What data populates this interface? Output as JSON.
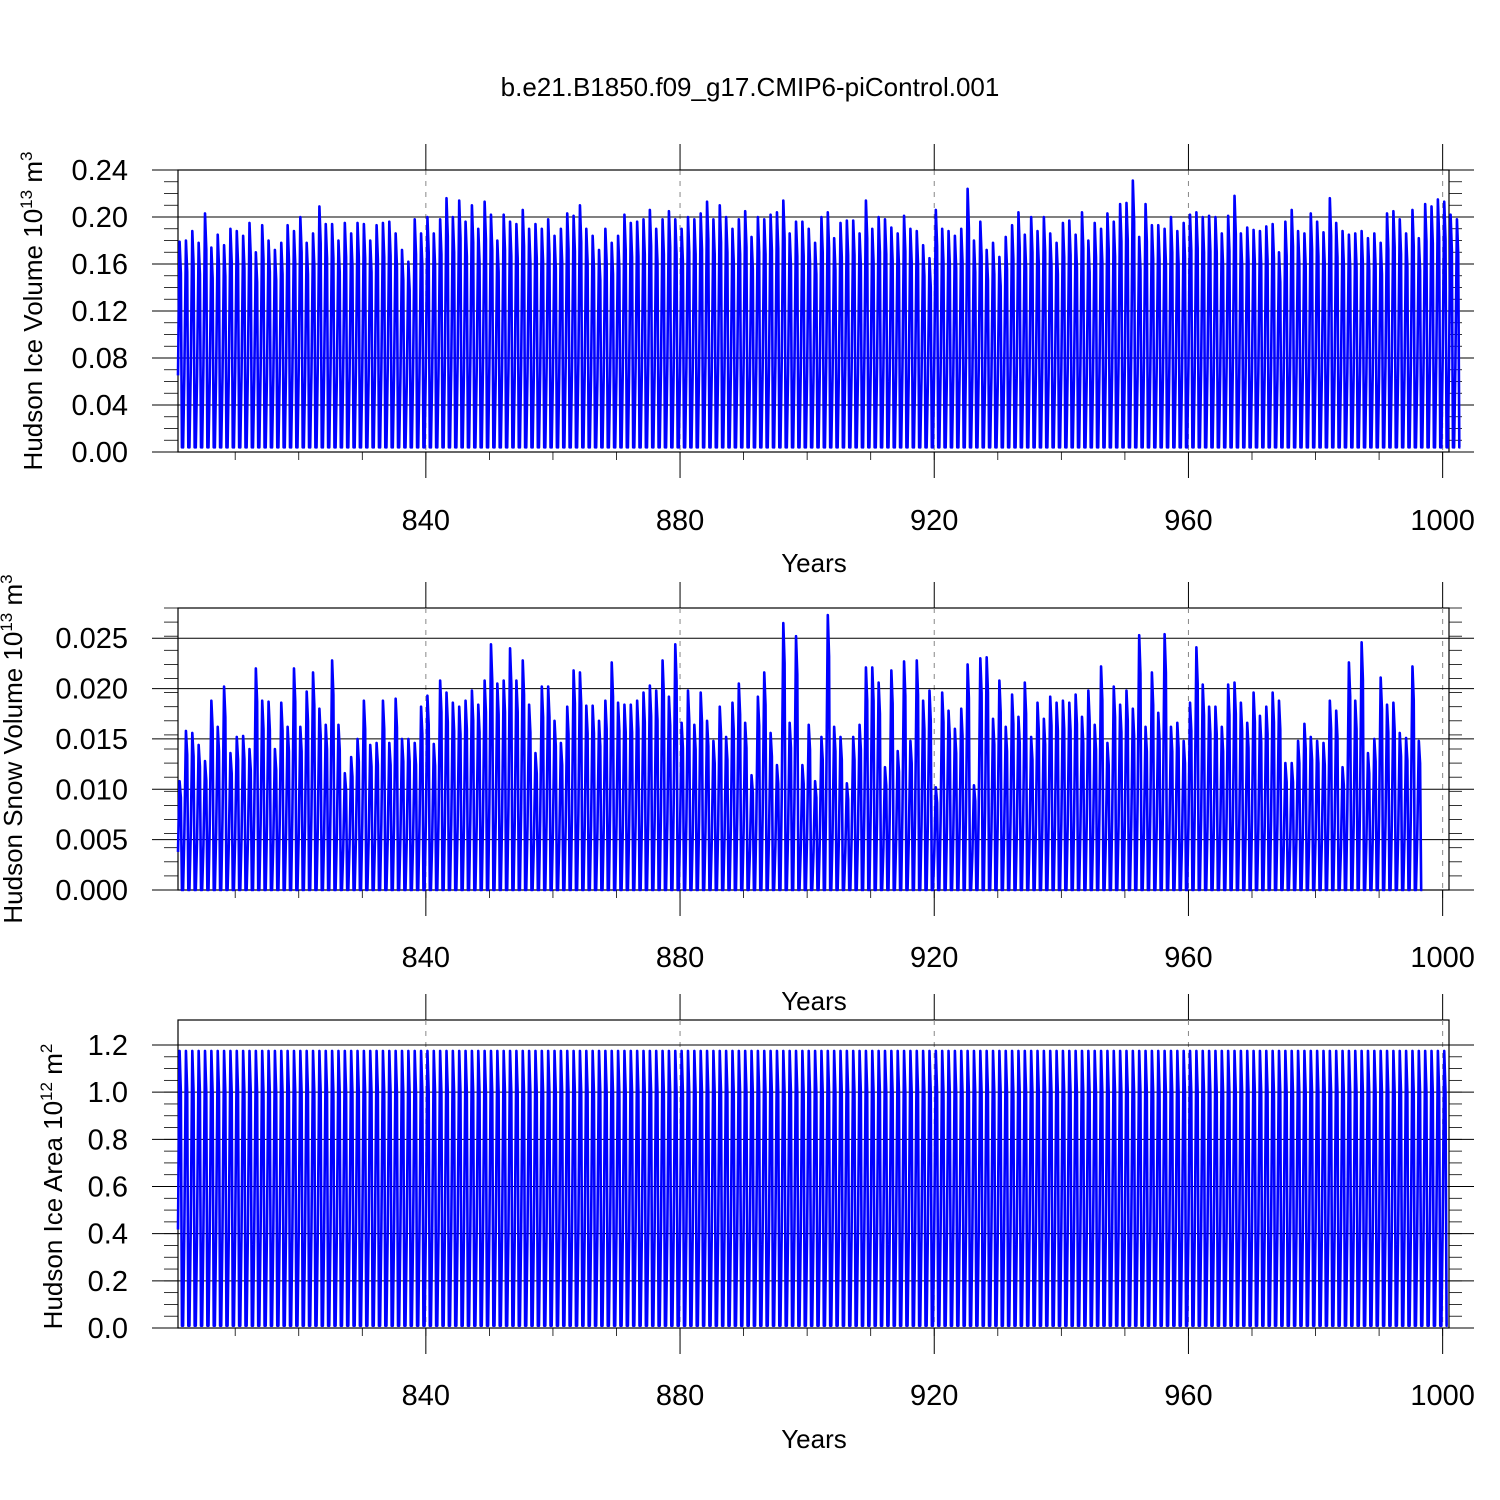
{
  "figure": {
    "title": "b.e21.B1850.f09_g17.CMIP6-piControl.001"
  },
  "chart_data": [
    {
      "type": "line",
      "title": "",
      "xlabel": "Years",
      "ylabel": "Hudson Ice Volume 10",
      "ylabel_exp1": "13",
      "ylabel_mid": " m",
      "ylabel_exp2": "3",
      "xlim": [
        801,
        1001
      ],
      "ylim": [
        0,
        0.24
      ],
      "x_ticks": [
        840,
        880,
        920,
        960,
        1000
      ],
      "y_ticks": [
        0.0,
        0.04,
        0.08,
        0.12,
        0.16,
        0.2,
        0.24
      ],
      "y_tick_labels": [
        "0.00",
        "0.04",
        "0.08",
        "0.12",
        "0.16",
        "0.20",
        "0.24"
      ],
      "grid": "dashed verticals at x ticks",
      "line_color": "#0000ff",
      "cycle": "annual",
      "series": [
        {
          "start_year": 801,
          "annual_min": 0.004,
          "annual_max": [
            0.179,
            0.18,
            0.188,
            0.178,
            0.203,
            0.174,
            0.185,
            0.176,
            0.19,
            0.188,
            0.184,
            0.195,
            0.17,
            0.193,
            0.18,
            0.172,
            0.178,
            0.193,
            0.188,
            0.2,
            0.178,
            0.186,
            0.209,
            0.194,
            0.194,
            0.18,
            0.195,
            0.186,
            0.195,
            0.194,
            0.18,
            0.193,
            0.195,
            0.196,
            0.186,
            0.172,
            0.162,
            0.198,
            0.186,
            0.2,
            0.186,
            0.198,
            0.216,
            0.2,
            0.214,
            0.196,
            0.21,
            0.19,
            0.213,
            0.202,
            0.18,
            0.202,
            0.196,
            0.194,
            0.206,
            0.19,
            0.194,
            0.19,
            0.198,
            0.184,
            0.19,
            0.203,
            0.201,
            0.21,
            0.19,
            0.184,
            0.172,
            0.19,
            0.178,
            0.184,
            0.202,
            0.195,
            0.196,
            0.198,
            0.206,
            0.19,
            0.198,
            0.205,
            0.198,
            0.19,
            0.2,
            0.198,
            0.203,
            0.213,
            0.198,
            0.21,
            0.2,
            0.19,
            0.198,
            0.205,
            0.183,
            0.2,
            0.198,
            0.202,
            0.204,
            0.214,
            0.186,
            0.196,
            0.196,
            0.19,
            0.178,
            0.2,
            0.204,
            0.182,
            0.195,
            0.197,
            0.197,
            0.186,
            0.214,
            0.19,
            0.2,
            0.198,
            0.191,
            0.186,
            0.201,
            0.19,
            0.188,
            0.176,
            0.165,
            0.206,
            0.19,
            0.188,
            0.184,
            0.19,
            0.224,
            0.18,
            0.196,
            0.172,
            0.178,
            0.166,
            0.183,
            0.193,
            0.204,
            0.185,
            0.2,
            0.188,
            0.2,
            0.186,
            0.178,
            0.195,
            0.197,
            0.185,
            0.204,
            0.18,
            0.195,
            0.19,
            0.203,
            0.196,
            0.211,
            0.212,
            0.231,
            0.183,
            0.211,
            0.193,
            0.193,
            0.19,
            0.2,
            0.188,
            0.195,
            0.202,
            0.204,
            0.2,
            0.201,
            0.2,
            0.186,
            0.201,
            0.218,
            0.186,
            0.191,
            0.189,
            0.188,
            0.192,
            0.194,
            0.17,
            0.196,
            0.206,
            0.188,
            0.186,
            0.203,
            0.196,
            0.187,
            0.216,
            0.195,
            0.188,
            0.185,
            0.186,
            0.188,
            0.182,
            0.186,
            0.178,
            0.203,
            0.205,
            0.198,
            0.186,
            0.206,
            0.182,
            0.211,
            0.209,
            0.215,
            0.213,
            0.202,
            0.198
          ]
        }
      ]
    },
    {
      "type": "line",
      "title": "",
      "xlabel": "Years",
      "ylabel": "Hudson Snow Volume 10",
      "ylabel_exp1": "13",
      "ylabel_mid": " m",
      "ylabel_exp2": "3",
      "xlim": [
        801,
        1001
      ],
      "ylim": [
        0,
        0.028
      ],
      "x_ticks": [
        840,
        880,
        920,
        960,
        1000
      ],
      "y_ticks": [
        0.0,
        0.005,
        0.01,
        0.015,
        0.02,
        0.025
      ],
      "y_tick_labels": [
        "0.000",
        "0.005",
        "0.010",
        "0.015",
        "0.020",
        "0.025"
      ],
      "grid": "dashed verticals at x ticks",
      "line_color": "#0000ff",
      "cycle": "annual",
      "series": [
        {
          "start_year": 801,
          "annual_min": 0.0,
          "annual_max": [
            0.0108,
            0.0158,
            0.0156,
            0.0144,
            0.0128,
            0.0188,
            0.0162,
            0.0202,
            0.0136,
            0.0152,
            0.0153,
            0.014,
            0.022,
            0.0188,
            0.0187,
            0.014,
            0.0186,
            0.0162,
            0.022,
            0.0162,
            0.0197,
            0.0216,
            0.018,
            0.0164,
            0.0228,
            0.0164,
            0.0116,
            0.0132,
            0.015,
            0.0188,
            0.0144,
            0.0146,
            0.0188,
            0.0146,
            0.019,
            0.015,
            0.015,
            0.0146,
            0.0182,
            0.0193,
            0.0145,
            0.0208,
            0.0196,
            0.0186,
            0.0182,
            0.0188,
            0.0198,
            0.0184,
            0.0208,
            0.0244,
            0.0205,
            0.0208,
            0.024,
            0.0208,
            0.0228,
            0.0184,
            0.0136,
            0.0202,
            0.0202,
            0.0168,
            0.0146,
            0.0182,
            0.0218,
            0.0216,
            0.0183,
            0.0183,
            0.0168,
            0.0188,
            0.0226,
            0.0186,
            0.0184,
            0.0184,
            0.0188,
            0.0196,
            0.0203,
            0.0198,
            0.0228,
            0.0192,
            0.0244,
            0.0166,
            0.0198,
            0.0164,
            0.0196,
            0.0168,
            0.0148,
            0.0182,
            0.0152,
            0.0186,
            0.0205,
            0.0166,
            0.0114,
            0.0192,
            0.0216,
            0.0156,
            0.0124,
            0.0265,
            0.0166,
            0.0252,
            0.0124,
            0.0164,
            0.0108,
            0.0152,
            0.0273,
            0.0162,
            0.0152,
            0.0106,
            0.0152,
            0.0164,
            0.0221,
            0.0221,
            0.0206,
            0.0122,
            0.0218,
            0.0138,
            0.0227,
            0.0148,
            0.0228,
            0.0188,
            0.0198,
            0.0102,
            0.0196,
            0.0178,
            0.016,
            0.018,
            0.0224,
            0.0104,
            0.023,
            0.0231,
            0.017,
            0.0208,
            0.0162,
            0.0194,
            0.0172,
            0.0206,
            0.0152,
            0.0186,
            0.017,
            0.0192,
            0.0186,
            0.0188,
            0.0186,
            0.0194,
            0.0172,
            0.0198,
            0.0164,
            0.0222,
            0.0146,
            0.0202,
            0.0184,
            0.0198,
            0.018,
            0.0253,
            0.0162,
            0.0216,
            0.0176,
            0.0254,
            0.0162,
            0.0166,
            0.0148,
            0.0186,
            0.0241,
            0.0204,
            0.0182,
            0.0182,
            0.0162,
            0.0204,
            0.0206,
            0.0186,
            0.0166,
            0.0196,
            0.0173,
            0.0182,
            0.0196,
            0.0188,
            0.0126,
            0.0126,
            0.0148,
            0.0165,
            0.0152,
            0.0148,
            0.0146,
            0.0188,
            0.0178,
            0.0122,
            0.0226,
            0.0188,
            0.0246,
            0.0136,
            0.015,
            0.0211,
            0.0184,
            0.0186,
            0.0156,
            0.0151,
            0.0222,
            0.0148
          ]
        }
      ]
    },
    {
      "type": "line",
      "title": "",
      "xlabel": "Years",
      "ylabel": "Hudson Ice Area 10",
      "ylabel_exp1": "12",
      "ylabel_mid": " m",
      "ylabel_exp2": "2",
      "xlim": [
        801,
        1001
      ],
      "ylim": [
        0,
        1.2
      ],
      "x_ticks": [
        840,
        880,
        920,
        960,
        1000
      ],
      "y_ticks": [
        0.0,
        0.2,
        0.4,
        0.6,
        0.8,
        1.0,
        1.2
      ],
      "y_tick_labels": [
        "0.0",
        "0.2",
        "0.4",
        "0.6",
        "0.8",
        "1.0",
        "1.2"
      ],
      "grid": "dashed verticals at x ticks",
      "line_color": "#0000ff",
      "cycle": "annual",
      "series": [
        {
          "start_year": 801,
          "annual_min": 0.01,
          "annual_max": 1.175
        }
      ]
    }
  ]
}
